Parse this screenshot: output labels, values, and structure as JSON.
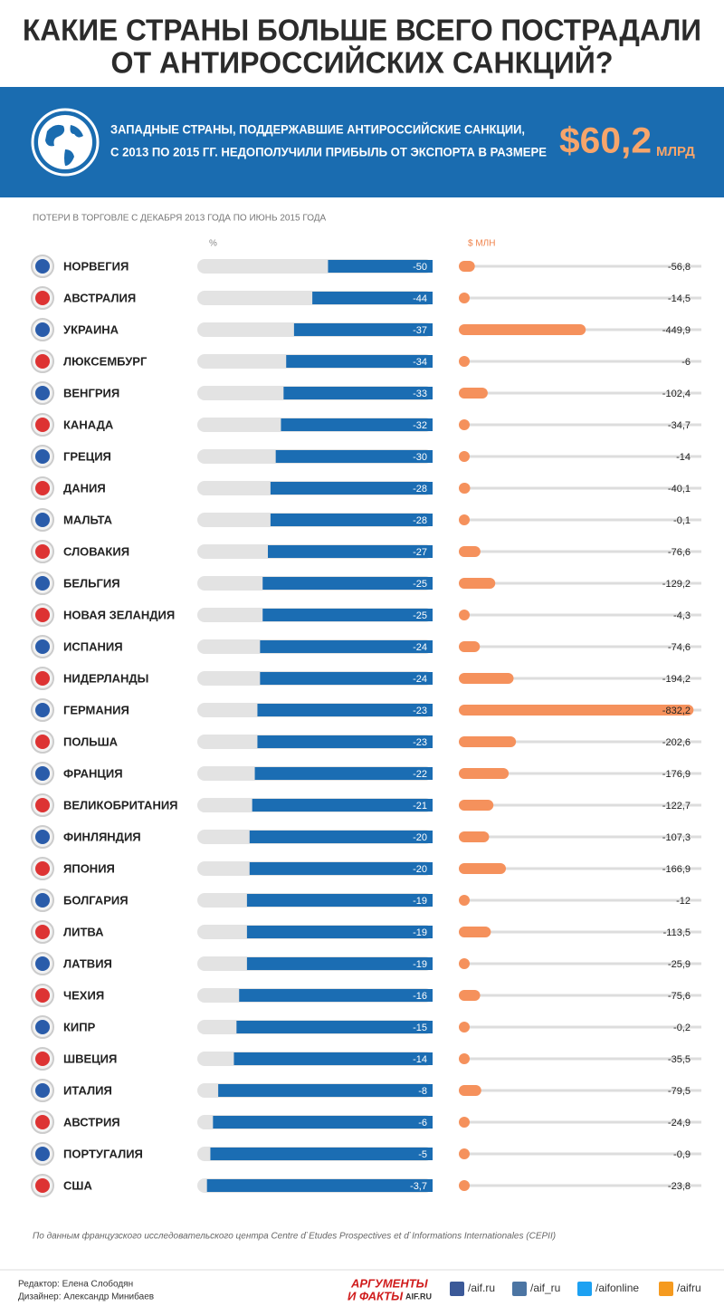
{
  "title": [
    "КАКИЕ СТРАНЫ БОЛЬШЕ ВСЕГО ПОСТРАДАЛИ",
    "ОТ АНТИРОССИЙСКИХ САНКЦИЙ?"
  ],
  "banner": {
    "text": [
      "ЗАПАДНЫЕ СТРАНЫ, ПОДДЕРЖАВШИЕ АНТИРОССИЙСКИЕ САНКЦИИ,",
      "С 2013 ПО 2015 ГГ. НЕДОПОЛУЧИЛИ ПРИБЫЛЬ ОТ ЭКСПОРТА В РАЗМЕРЕ"
    ],
    "total": "$60,2",
    "unit": "МЛРД"
  },
  "chart_data": {
    "type": "bar",
    "subtitle": "ПОТЕРИ В ТОРГОВЛЕ С ДЕКАБРЯ 2013 ГОДА ПО ИЮНЬ 2015 ГОДА",
    "categories": [
      "НОРВЕГИЯ",
      "АВСТРАЛИЯ",
      "УКРАИНА",
      "ЛЮКСЕМБУРГ",
      "ВЕНГРИЯ",
      "КАНАДА",
      "ГРЕЦИЯ",
      "ДАНИЯ",
      "МАЛЬТА",
      "СЛОВАКИЯ",
      "БЕЛЬГИЯ",
      "НОВАЯ ЗЕЛАНДИЯ",
      "ИСПАНИЯ",
      "НИДЕРЛАНДЫ",
      "ГЕРМАНИЯ",
      "ПОЛЬША",
      "ФРАНЦИЯ",
      "ВЕЛИКОБРИТАНИЯ",
      "ФИНЛЯНДИЯ",
      "ЯПОНИЯ",
      "БОЛГАРИЯ",
      "ЛИТВА",
      "ЛАТВИЯ",
      "ЧЕХИЯ",
      "КИПР",
      "ШВЕЦИЯ",
      "ИТАЛИЯ",
      "АВСТРИЯ",
      "ПОРТУГАЛИЯ",
      "США"
    ],
    "series": [
      {
        "name": "%",
        "color": "#1b6db3",
        "xlim": [
          0,
          -90
        ],
        "values": [
          -50,
          -44,
          -37,
          -34,
          -33,
          -32,
          -30,
          -28,
          -28,
          -27,
          -25,
          -25,
          -24,
          -24,
          -23,
          -23,
          -22,
          -21,
          -20,
          -20,
          -19,
          -19,
          -19,
          -16,
          -15,
          -14,
          -8,
          -6,
          -5,
          -3.7
        ],
        "value_labels": [
          "-50",
          "-44",
          "-37",
          "-34",
          "-33",
          "-32",
          "-30",
          "-28",
          "-28",
          "-27",
          "-25",
          "-25",
          "-24",
          "-24",
          "-23",
          "-23",
          "-22",
          "-21",
          "-20",
          "-20",
          "-19",
          "-19",
          "-19",
          "-16",
          "-15",
          "-14",
          "-8",
          "-6",
          "-5",
          "-3,7"
        ]
      },
      {
        "name": "$ МЛН",
        "color": "#f5915c",
        "xlim": [
          0,
          -860
        ],
        "values": [
          -56.8,
          -14.5,
          -449.9,
          -6,
          -102.4,
          -34.7,
          -14,
          -40.1,
          -0.1,
          -76.6,
          -129.2,
          -4.3,
          -74.6,
          -194.2,
          -832.2,
          -202.6,
          -176.9,
          -122.7,
          -107.3,
          -166.9,
          -12,
          -113.5,
          -25.9,
          -75.6,
          -0.2,
          -35.5,
          -79.5,
          -24.9,
          -0.9,
          -23.8
        ],
        "value_labels": [
          "-56,8",
          "-14,5",
          "-449,9",
          "-6",
          "-102,4",
          "-34,7",
          "-14",
          "-40,1",
          "-0,1",
          "-76,6",
          "-129,2",
          "-4,3",
          "-74,6",
          "-194,2",
          "-832,2",
          "-202,6",
          "-176,9",
          "-122,7",
          "-107,3",
          "-166,9",
          "-12",
          "-113,5",
          "-25,9",
          "-75,6",
          "-0,2",
          "-35,5",
          "-79,5",
          "-24,9",
          "-0,9",
          "-23,8"
        ]
      }
    ],
    "source": "По данным французского исследовательского центра Centre d`Etudes Prospectives et d`Informations Internationales (CEPII)"
  },
  "footer": {
    "credits": [
      "Редактор: Елена Слободян",
      "Дизайнер: Александр Минибаев"
    ],
    "logo": [
      "АРГУМЕНТЫ",
      "И ФАКТЫ",
      "AIF.RU"
    ],
    "social": [
      "/aif.ru",
      "/aif_ru",
      "/aifonline",
      "/aifru"
    ]
  }
}
